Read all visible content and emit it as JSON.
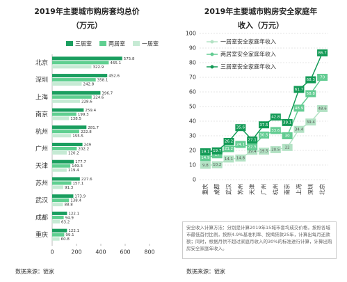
{
  "chart_data": [
    {
      "type": "hbar",
      "title": "2019年主要城市购房套均总价",
      "subtitle": "（万元）",
      "categories": [
        "北京",
        "深圳",
        "上海",
        "南京",
        "杭州",
        "广州",
        "天津",
        "苏州",
        "武汉",
        "成都",
        "重庆"
      ],
      "series": [
        {
          "name": "三居室",
          "color": "#1a9e5f",
          "values": [
            575.8,
            452.6,
            396.7,
            259.4,
            281.7,
            249,
            177.7,
            227.6,
            173.9,
            122.1,
            122.1
          ]
        },
        {
          "name": "两居室",
          "color": "#5fcf90",
          "values": [
            465.1,
            358.1,
            324.6,
            199.3,
            222.8,
            202.2,
            149.3,
            157.1,
            138.4,
            94.9,
            99.1
          ]
        },
        {
          "name": "一居室",
          "color": "#c6ead4",
          "values": [
            322.9,
            242.8,
            228.6,
            138.5,
            155.5,
            120.2,
            119.4,
            91.3,
            88.8,
            63.2,
            60.8
          ]
        }
      ],
      "xlim": [
        0,
        800
      ],
      "xticks": [
        0,
        200,
        400,
        600,
        800
      ],
      "legend": "top",
      "source": "数据来源：链家"
    },
    {
      "type": "line",
      "title": "2019年主要城市购房安全家庭年",
      "subtitle": "收入（万元）",
      "categories": [
        "重庆",
        "成都",
        "武汉",
        "苏州",
        "天津",
        "广州",
        "杭州",
        "南京",
        "上海",
        "深圳",
        "北京"
      ],
      "series": [
        {
          "name": "一居室安全家庭年收入",
          "color": "#b3e2c4",
          "values": [
            9.8,
            10.2,
            14.1,
            14.8,
            19.4,
            19.5,
            20.5,
            22.0,
            34.4,
            39.4,
            48.6
          ]
        },
        {
          "name": "两居室安全家庭年收入",
          "color": "#63cc92",
          "values": [
            14.9,
            17.0,
            21.2,
            24.1,
            22.5,
            30.5,
            33.6,
            30.0,
            48.9,
            58.8,
            70.0
          ]
        },
        {
          "name": "三居室安全家庭年收入",
          "color": "#139a56",
          "values": [
            19.1,
            19.7,
            26.2,
            35.6,
            27.1,
            37.5,
            42.8,
            39.1,
            61.7,
            68.3,
            86.7
          ]
        }
      ],
      "ylim": [
        0,
        100
      ],
      "yticks": [
        0,
        10,
        20,
        30,
        40,
        50,
        60,
        70,
        80,
        90,
        100
      ],
      "grid": true,
      "legend": "upper left",
      "note": "安全收入计算方法：分别是计算2019年15城市套均成交价格，按照各城市最低首付比例，按照4.9%基准利率、按揭贷款25年，计算出每月还款额；同时，根据月供不超过家庭月收入的30%的标准进行计算，计算出购房安全家庭年收入。",
      "source": "数据来源：链家"
    }
  ]
}
